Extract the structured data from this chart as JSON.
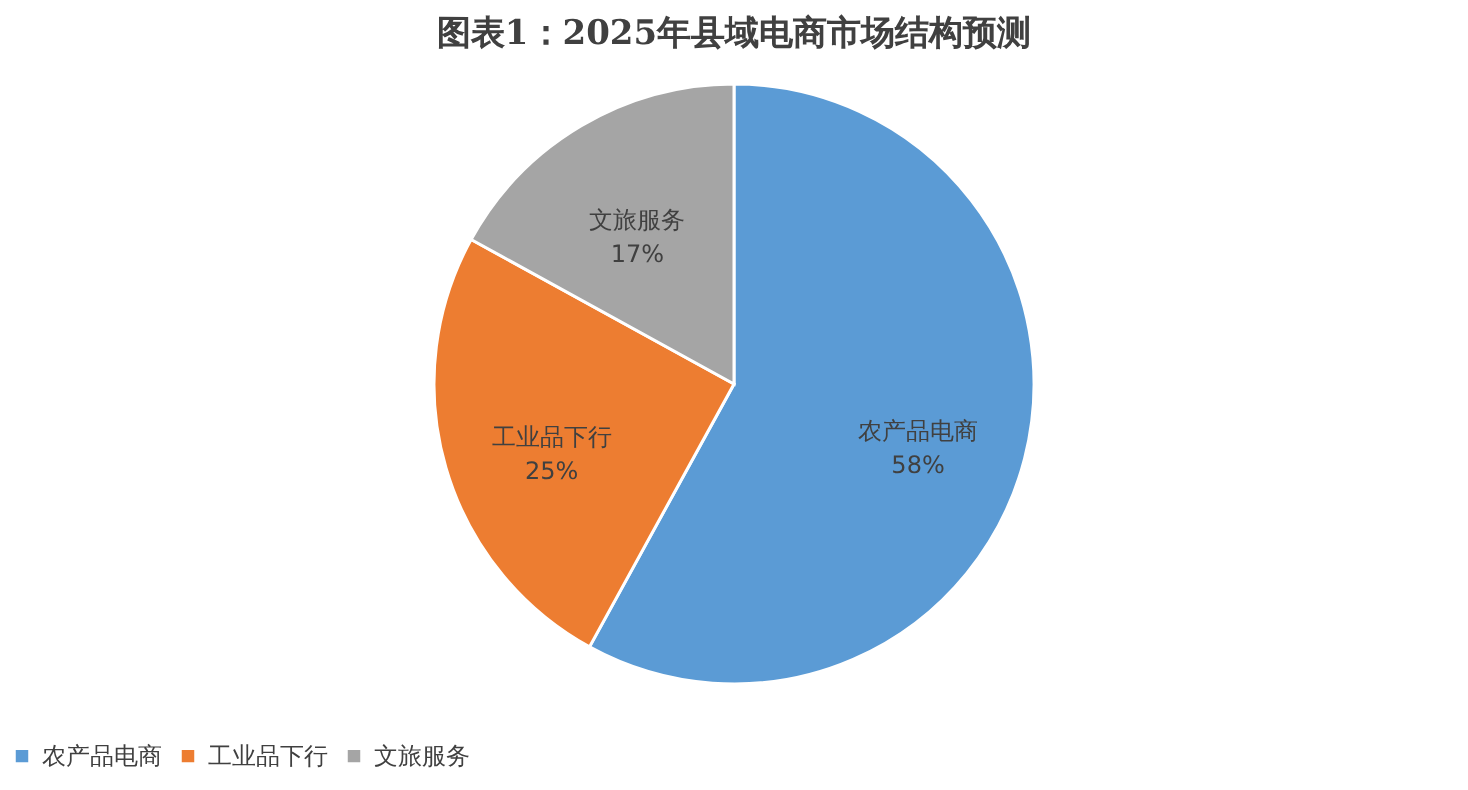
{
  "chart_data": {
    "type": "pie",
    "title": "图表1：2025年县域电商市场结构预测",
    "categories": [
      "农产品电商",
      "工业品下行",
      "文旅服务"
    ],
    "values": [
      58,
      25,
      17
    ],
    "colors": [
      "#5b9bd5",
      "#ed7d31",
      "#a5a5a5"
    ],
    "value_labels": [
      "58%",
      "25%",
      "17%"
    ],
    "legend": "bottom"
  }
}
